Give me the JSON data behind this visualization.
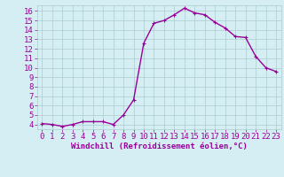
{
  "x": [
    0,
    1,
    2,
    3,
    4,
    5,
    6,
    7,
    8,
    9,
    10,
    11,
    12,
    13,
    14,
    15,
    16,
    17,
    18,
    19,
    20,
    21,
    22,
    23
  ],
  "y": [
    4.1,
    4.0,
    3.8,
    4.0,
    4.3,
    4.3,
    4.3,
    4.0,
    5.0,
    6.6,
    12.6,
    14.7,
    15.0,
    15.6,
    16.3,
    15.8,
    15.6,
    14.8,
    14.2,
    13.3,
    13.2,
    11.2,
    10.0,
    9.6
  ],
  "line_color": "#990099",
  "marker": "+",
  "marker_size": 3,
  "bg_color": "#d4eef4",
  "grid_color": "#aacccc",
  "xlabel": "Windchill (Refroidissement éolien,°C)",
  "xlim": [
    -0.5,
    23.5
  ],
  "ylim": [
    3.5,
    16.6
  ],
  "yticks": [
    4,
    5,
    6,
    7,
    8,
    9,
    10,
    11,
    12,
    13,
    14,
    15,
    16
  ],
  "xticks": [
    0,
    1,
    2,
    3,
    4,
    5,
    6,
    7,
    8,
    9,
    10,
    11,
    12,
    13,
    14,
    15,
    16,
    17,
    18,
    19,
    20,
    21,
    22,
    23
  ],
  "tick_color": "#990099",
  "label_color": "#990099",
  "font_size": 6.5,
  "line_width": 1.0,
  "marker_edge_width": 0.8
}
